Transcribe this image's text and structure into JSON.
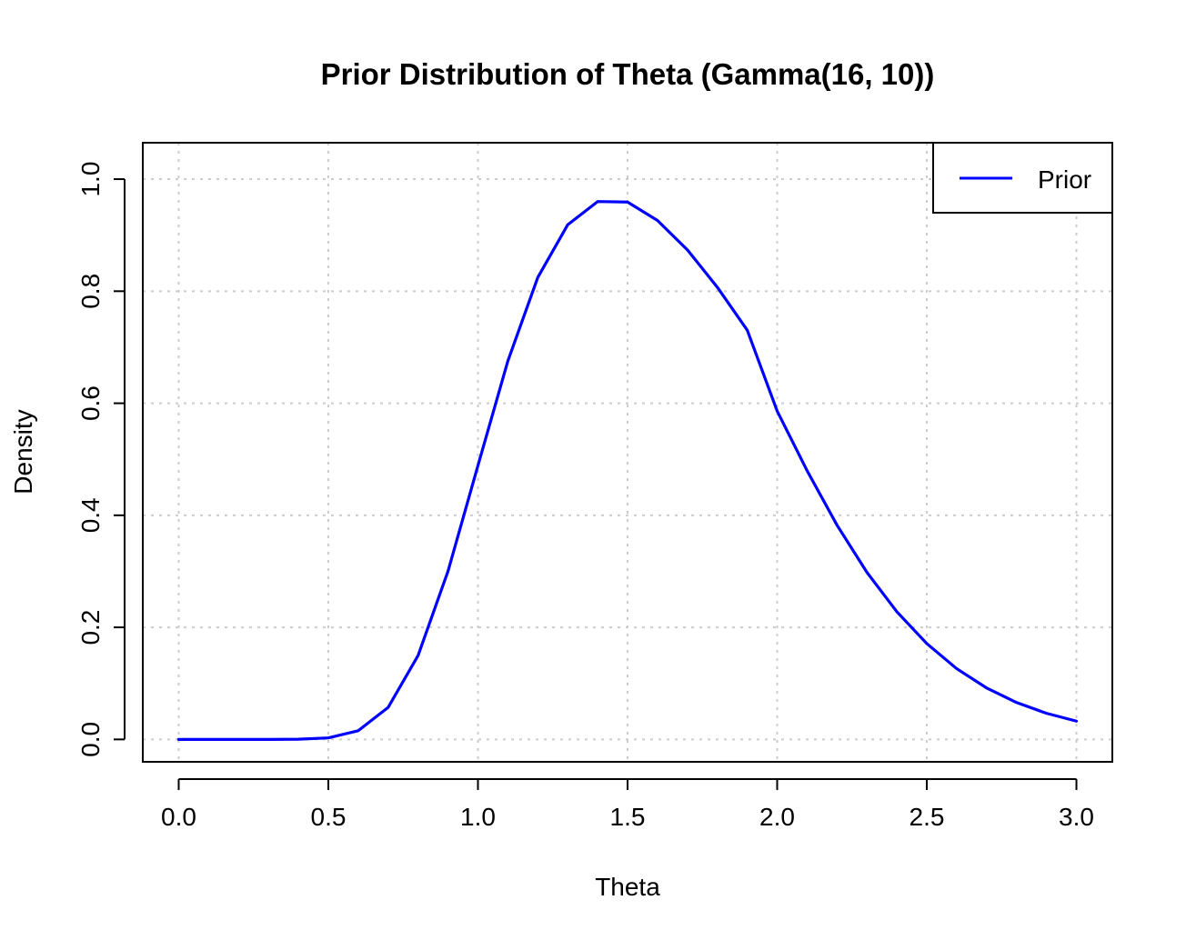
{
  "chart_data": {
    "type": "line",
    "title": "Prior Distribution of Theta (Gamma(16, 10))",
    "xlabel": "Theta",
    "ylabel": "Density",
    "xlim": [
      -0.12,
      3.12
    ],
    "ylim": [
      -0.04,
      1.065
    ],
    "x_ticks": [
      "0.0",
      "0.5",
      "1.0",
      "1.5",
      "2.0",
      "2.5",
      "3.0"
    ],
    "y_ticks": [
      "0.0",
      "0.2",
      "0.4",
      "0.6",
      "0.8",
      "1.0"
    ],
    "grid": true,
    "legend_position": "top-right",
    "series": [
      {
        "name": "Prior",
        "color": "#0000ff",
        "x": [
          0.0,
          0.1,
          0.2,
          0.3,
          0.4,
          0.5,
          0.6,
          0.7,
          0.8,
          0.9,
          1.0,
          1.1,
          1.2,
          1.3,
          1.4,
          1.5,
          1.6,
          1.7,
          1.8,
          1.9,
          2.0,
          2.1,
          2.2,
          2.3,
          2.4,
          2.5,
          2.6,
          2.7,
          2.8,
          2.9,
          3.0
        ],
        "y": [
          0.0,
          0.0,
          0.0,
          0.0,
          0.0003,
          0.0027,
          0.0155,
          0.0572,
          0.1498,
          0.3003,
          0.4887,
          0.6755,
          0.8245,
          0.9186,
          0.96,
          0.9591,
          0.9262,
          0.8738,
          0.8071,
          0.7304,
          0.586,
          0.4796,
          0.3824,
          0.2981,
          0.2278,
          0.171,
          0.1262,
          0.0918,
          0.0658,
          0.0466,
          0.0326
        ]
      }
    ]
  }
}
